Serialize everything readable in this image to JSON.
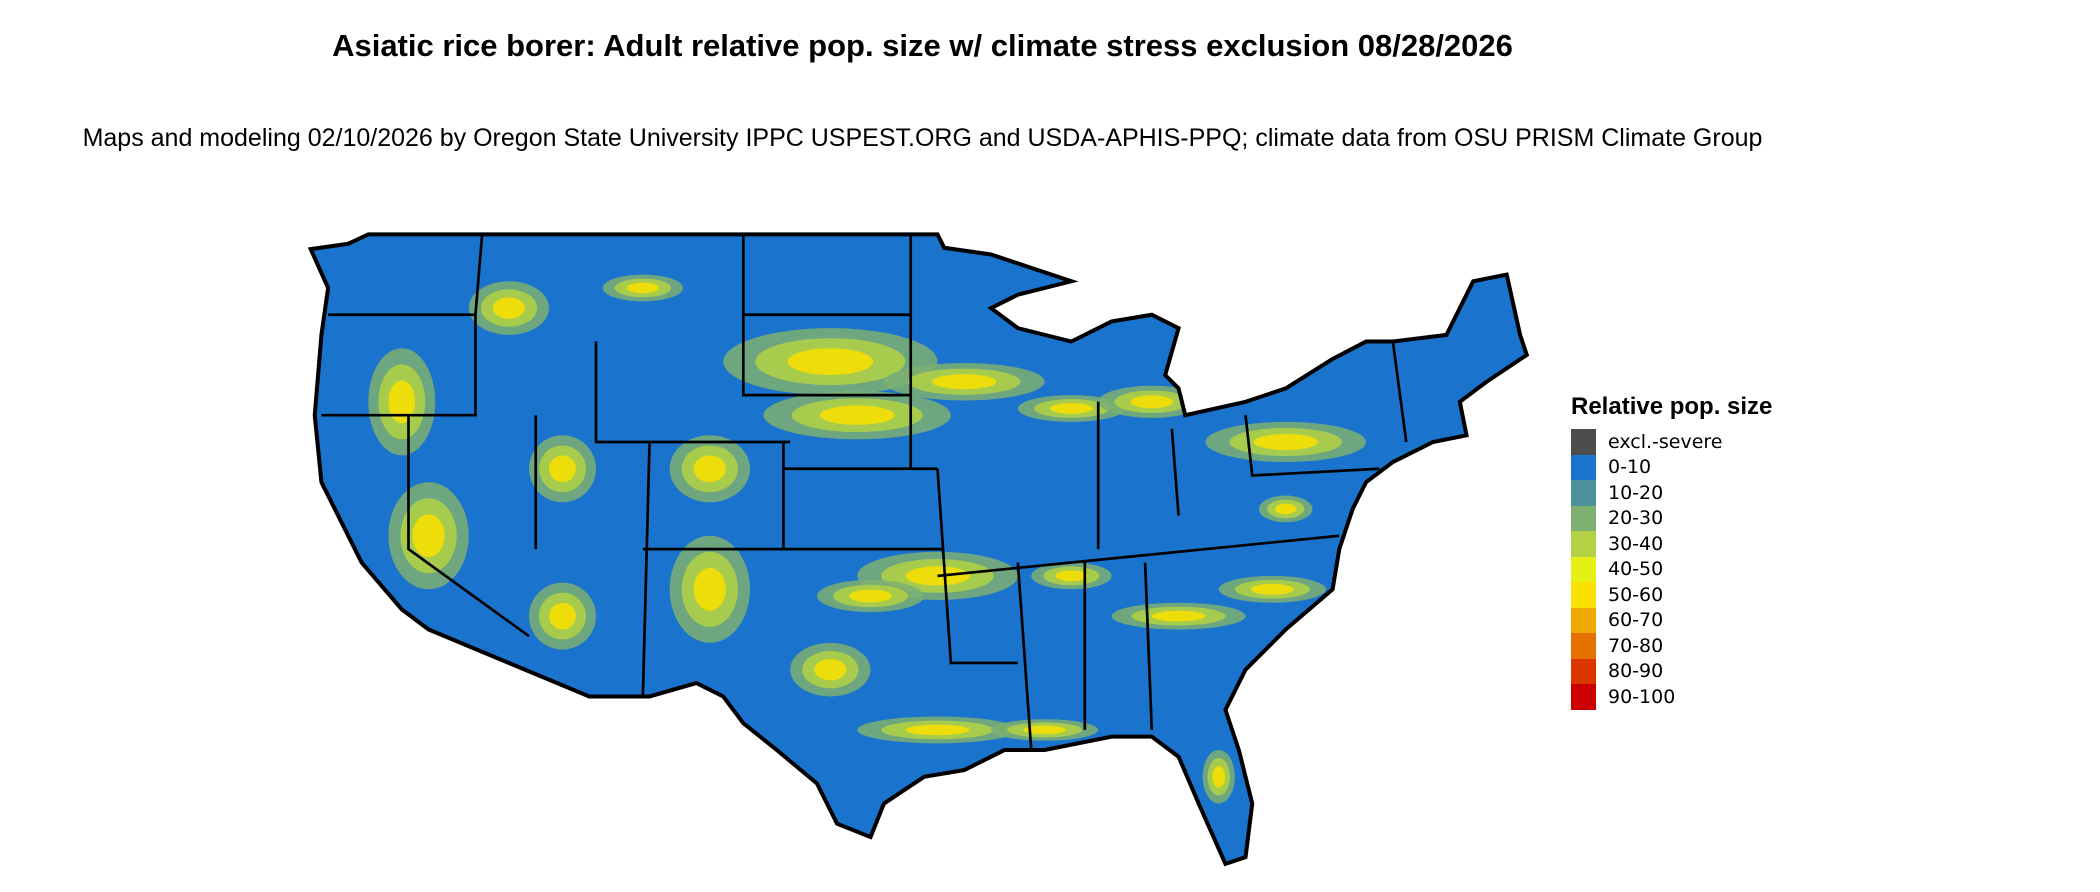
{
  "title": "Asiatic rice borer: Adult relative pop. size w/ climate stress exclusion 08/28/2026",
  "subtitle": "Maps and modeling 02/10/2026 by Oregon State University IPPC USPEST.ORG and USDA-APHIS-PPQ; climate data from OSU PRISM Climate Group",
  "map": {
    "region": "Contiguous United States",
    "dominant_class": "0-10",
    "state_borders": true
  },
  "legend": {
    "title": "Relative pop. size",
    "items": [
      {
        "label": "excl.-severe",
        "color": "#4d4d4d"
      },
      {
        "label": "0-10",
        "color": "#1a73cd"
      },
      {
        "label": "10-20",
        "color": "#4a919c"
      },
      {
        "label": "20-30",
        "color": "#7daf71"
      },
      {
        "label": "30-40",
        "color": "#b2d244"
      },
      {
        "label": "40-50",
        "color": "#e5f114"
      },
      {
        "label": "50-60",
        "color": "#f9e100"
      },
      {
        "label": "60-70",
        "color": "#eeaa00"
      },
      {
        "label": "70-80",
        "color": "#e57100"
      },
      {
        "label": "80-90",
        "color": "#db3500"
      },
      {
        "label": "90-100",
        "color": "#cc0000"
      }
    ]
  }
}
